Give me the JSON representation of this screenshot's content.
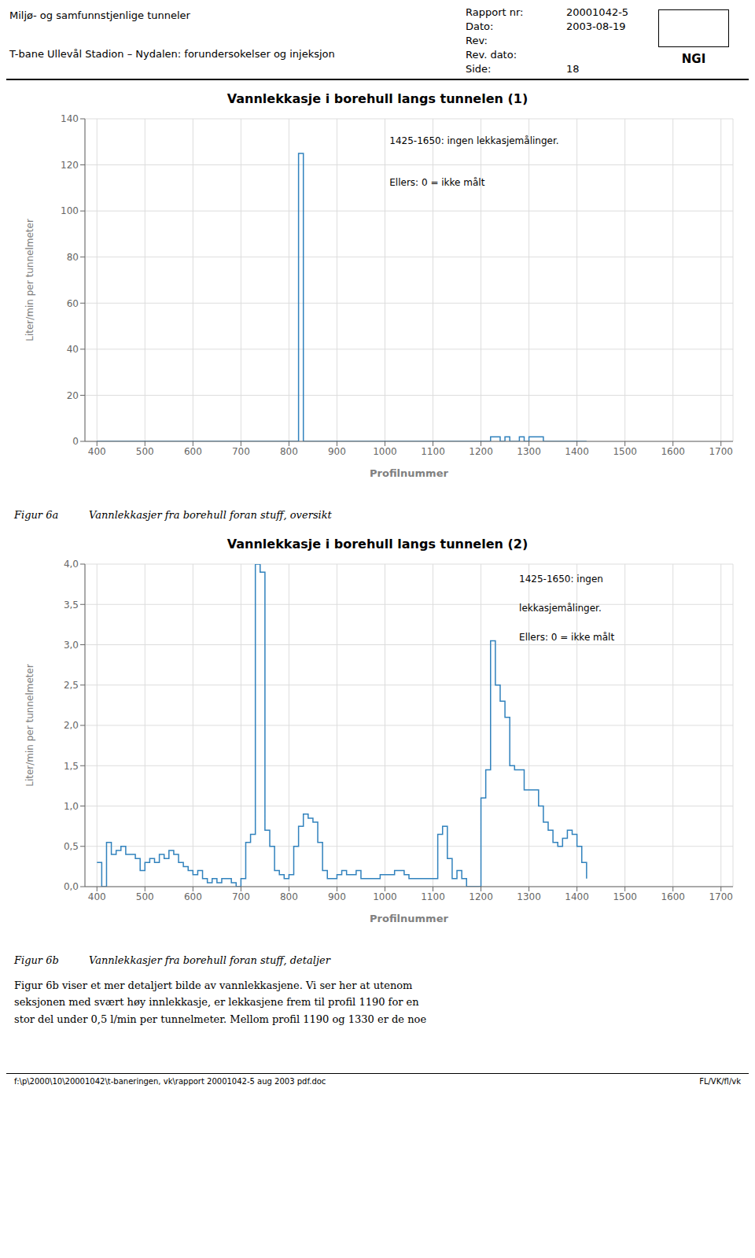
{
  "header": {
    "title_lines": [
      "Miljø- og samfunnstjenlige tunneler",
      "T-bane Ullevål Stadion – Nydalen: forundersokelser og injeksjon"
    ],
    "report_fields": [
      {
        "label": "Rapport nr:",
        "value": "20001042-5"
      },
      {
        "label": "Dato:",
        "value": "2003-08-19"
      },
      {
        "label": "Rev:"
      },
      {
        "label": "Rev. dato:"
      },
      {
        "label": "Side:",
        "value": "18"
      }
    ],
    "logo": "NGI"
  },
  "chart_data": [
    {
      "type": "line",
      "line_style": "step",
      "title": "Vannlekkasje i borehull langs tunnelen (1)",
      "xlabel": "Profilnummer",
      "ylabel": "Liter/min per tunnelmeter",
      "annotations": [
        "1425-1650: ingen lekkasjemålinger.",
        "Ellers: 0 = ikke målt"
      ],
      "caption_label": "Figur 6a",
      "caption": "Vannlekkasjer fra borehull foran stuff, oversikt",
      "grid": true,
      "xlim": [
        375,
        1725
      ],
      "xticks": [
        400,
        500,
        600,
        700,
        800,
        900,
        1000,
        1100,
        1200,
        1300,
        1400,
        1500,
        1600,
        1700
      ],
      "ylim": [
        0,
        140
      ],
      "yticks": [
        0,
        20,
        40,
        60,
        80,
        100,
        120,
        140
      ],
      "x": [
        400,
        410,
        420,
        430,
        440,
        450,
        460,
        470,
        480,
        490,
        500,
        510,
        520,
        530,
        540,
        550,
        560,
        570,
        580,
        590,
        600,
        610,
        620,
        630,
        640,
        650,
        660,
        670,
        680,
        690,
        700,
        710,
        720,
        730,
        740,
        750,
        760,
        770,
        780,
        790,
        800,
        810,
        820,
        830,
        840,
        850,
        860,
        870,
        880,
        890,
        900,
        910,
        920,
        930,
        940,
        950,
        960,
        970,
        980,
        990,
        1000,
        1010,
        1020,
        1030,
        1040,
        1050,
        1060,
        1070,
        1080,
        1090,
        1100,
        1110,
        1120,
        1130,
        1140,
        1150,
        1160,
        1170,
        1180,
        1190,
        1200,
        1210,
        1220,
        1230,
        1240,
        1250,
        1260,
        1270,
        1280,
        1290,
        1300,
        1310,
        1320,
        1330,
        1340,
        1350,
        1360,
        1370,
        1380,
        1390,
        1400,
        1410,
        1420
      ],
      "values": [
        0,
        0,
        0,
        0,
        0,
        0,
        0,
        0,
        0,
        0,
        0,
        0,
        0,
        0,
        0,
        0,
        0,
        0,
        0,
        0,
        0,
        0,
        0,
        0,
        0,
        0,
        0,
        0,
        0,
        0,
        0,
        0,
        0,
        0,
        0,
        0,
        0,
        0,
        0,
        0,
        0,
        0,
        125,
        0,
        0,
        0,
        0,
        0,
        0,
        0,
        0,
        0,
        0,
        0,
        0,
        0,
        0,
        0,
        0,
        0,
        0,
        0,
        0,
        0,
        0,
        0,
        0,
        0,
        0,
        0,
        0,
        0,
        0,
        0,
        0,
        0,
        0,
        0,
        0,
        0,
        0,
        0,
        2,
        2,
        0,
        2,
        0,
        0,
        2,
        0,
        2,
        2,
        2,
        0,
        0,
        0,
        0,
        0,
        0,
        0,
        0,
        0,
        0
      ]
    },
    {
      "type": "line",
      "line_style": "step",
      "title": "Vannlekkasje i borehull langs tunnelen (2)",
      "xlabel": "Profilnummer",
      "ylabel": "Liter/min per tunnelmeter",
      "annotations": [
        "1425-1650: ingen",
        "lekkasjemålinger.",
        "Ellers: 0 = ikke målt"
      ],
      "caption_label": "Figur 6b",
      "caption": "Vannlekkasjer fra borehull foran stuff, detaljer",
      "grid": true,
      "xlim": [
        375,
        1725
      ],
      "xticks": [
        400,
        500,
        600,
        700,
        800,
        900,
        1000,
        1100,
        1200,
        1300,
        1400,
        1500,
        1600,
        1700
      ],
      "ylim": [
        0.0,
        4.0
      ],
      "yticks": [
        {
          "value": 0.0,
          "label": "0,0"
        },
        {
          "value": 0.5,
          "label": "0,5"
        },
        {
          "value": 1.0,
          "label": "1,0"
        },
        {
          "value": 1.5,
          "label": "1,5"
        },
        {
          "value": 2.0,
          "label": "2,0"
        },
        {
          "value": 2.5,
          "label": "2,5"
        },
        {
          "value": 3.0,
          "label": "3,0"
        },
        {
          "value": 3.5,
          "label": "3,5"
        },
        {
          "value": 4.0,
          "label": "4,0"
        }
      ],
      "x": [
        400,
        410,
        420,
        430,
        440,
        450,
        460,
        470,
        480,
        490,
        500,
        510,
        520,
        530,
        540,
        550,
        560,
        570,
        580,
        590,
        600,
        610,
        620,
        630,
        640,
        650,
        660,
        670,
        680,
        690,
        700,
        710,
        720,
        730,
        740,
        750,
        760,
        770,
        780,
        790,
        800,
        810,
        820,
        830,
        840,
        850,
        860,
        870,
        880,
        890,
        900,
        910,
        920,
        930,
        940,
        950,
        960,
        970,
        980,
        990,
        1000,
        1010,
        1020,
        1030,
        1040,
        1050,
        1060,
        1070,
        1080,
        1090,
        1100,
        1110,
        1120,
        1130,
        1140,
        1150,
        1160,
        1170,
        1180,
        1190,
        1200,
        1210,
        1220,
        1230,
        1240,
        1250,
        1260,
        1270,
        1280,
        1290,
        1300,
        1310,
        1320,
        1330,
        1340,
        1350,
        1360,
        1370,
        1380,
        1390,
        1400,
        1410,
        1420
      ],
      "values": [
        0.3,
        0.0,
        0.55,
        0.4,
        0.45,
        0.5,
        0.4,
        0.4,
        0.35,
        0.2,
        0.3,
        0.35,
        0.3,
        0.4,
        0.35,
        0.45,
        0.4,
        0.3,
        0.25,
        0.2,
        0.15,
        0.2,
        0.1,
        0.05,
        0.1,
        0.05,
        0.1,
        0.1,
        0.05,
        0.0,
        0.1,
        0.55,
        0.65,
        4.0,
        3.9,
        0.7,
        0.5,
        0.2,
        0.15,
        0.1,
        0.15,
        0.5,
        0.75,
        0.9,
        0.85,
        0.8,
        0.55,
        0.2,
        0.1,
        0.1,
        0.15,
        0.2,
        0.15,
        0.15,
        0.2,
        0.1,
        0.1,
        0.1,
        0.1,
        0.15,
        0.15,
        0.15,
        0.2,
        0.2,
        0.15,
        0.1,
        0.1,
        0.1,
        0.1,
        0.1,
        0.1,
        0.65,
        0.75,
        0.35,
        0.1,
        0.2,
        0.1,
        0.0,
        0.0,
        0.0,
        1.1,
        1.45,
        3.05,
        2.5,
        2.3,
        2.1,
        1.5,
        1.45,
        1.45,
        1.2,
        1.2,
        1.2,
        1.0,
        0.8,
        0.7,
        0.55,
        0.5,
        0.6,
        0.7,
        0.65,
        0.5,
        0.3,
        0.1
      ]
    }
  ],
  "body_text": "Figur 6b viser et mer detaljert bilde av vannlekkasjene. Vi ser her at utenom\nseksjonen med svært høy innlekkasje, er lekkasjene frem til profil 1190 for en\nstor del under 0,5 l/min per tunnelmeter. Mellom profil 1190 og 1330 er de noe",
  "footer_left": "f:\\p\\2000\\10\\20001042\\t-baneringen, vk\\rapport 20001042-5 aug 2003 pdf.doc",
  "footer_right": "FL/VK/fl/vk"
}
